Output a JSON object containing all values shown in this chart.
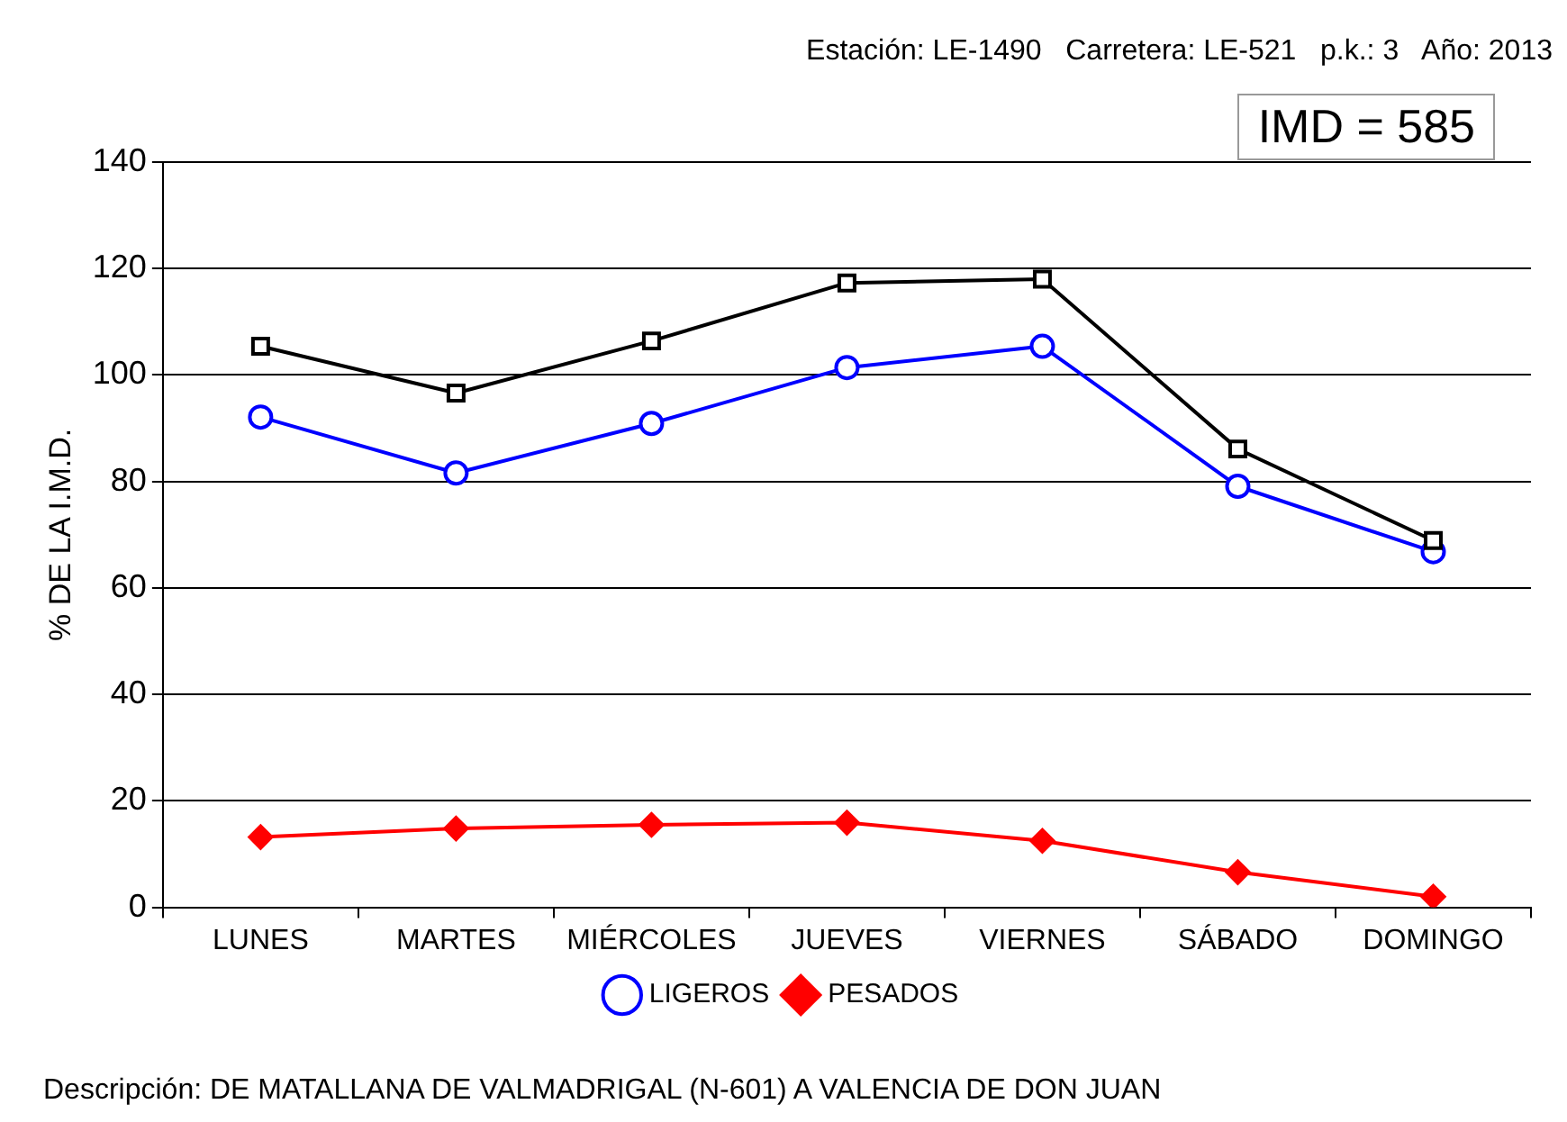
{
  "chart_data": {
    "type": "line",
    "categories": [
      "LUNES",
      "MARTES",
      "MIÉRCOLES",
      "JUEVES",
      "VIERNES",
      "SÁBADO",
      "DOMINGO"
    ],
    "series": [
      {
        "color": "#000000",
        "marker": "square",
        "values": [
          105.4,
          96.6,
          106.4,
          117.3,
          118.0,
          86.1,
          68.9
        ]
      },
      {
        "name": "LIGEROS",
        "color": "#0000ff",
        "marker": "circle",
        "values": [
          92.1,
          81.6,
          90.9,
          101.4,
          105.4,
          79.1,
          66.8
        ]
      },
      {
        "name": "PESADOS",
        "color": "#ff0000",
        "marker": "diamond",
        "values": [
          13.2,
          14.8,
          15.5,
          15.9,
          12.5,
          6.6,
          2.0
        ]
      }
    ],
    "ylabel": "% DE LA I.M.D.",
    "ylim": [
      0,
      140
    ],
    "yticks": [
      0,
      20,
      40,
      60,
      80,
      100,
      120,
      140
    ],
    "grid": "y",
    "legend": "bottom",
    "annotations": [
      "Estación: LE-1490   Carretera: LE-521   p.k.: 3   Año: 2013",
      "IMD = 585",
      "Descripción: DE MATALLANA DE VALMADRIGAL (N-601) A VALENCIA DE DON JUAN"
    ]
  }
}
